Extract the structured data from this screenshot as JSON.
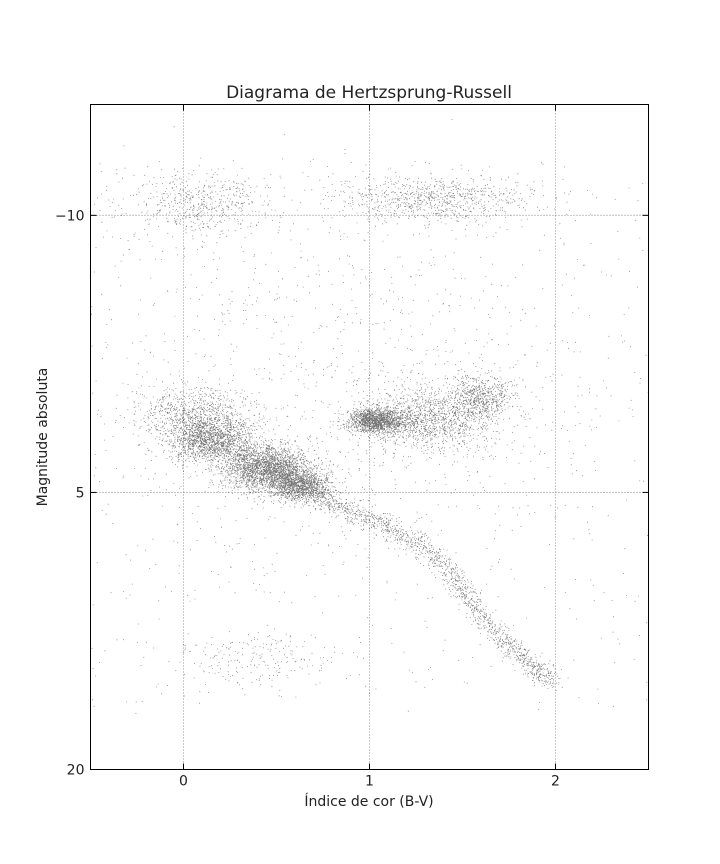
{
  "chart_data": {
    "type": "scatter",
    "title": "Diagrama de Hertzsprung-Russell",
    "xlabel": "Índice de cor (B-V)",
    "ylabel": "Magnitude absoluta",
    "xlim": [
      -0.5,
      2.5
    ],
    "ylim": [
      -16,
      20
    ],
    "y_inverted": true,
    "grid": true,
    "legend": "none",
    "point_color": "#000000",
    "x_ticks": [
      {
        "value": 0,
        "label": "0"
      },
      {
        "value": 1,
        "label": "1"
      },
      {
        "value": 2,
        "label": "2"
      }
    ],
    "y_ticks": [
      {
        "value": -10,
        "label": "−10"
      },
      {
        "value": 5,
        "label": "5"
      },
      {
        "value": 20,
        "label": "20"
      }
    ],
    "regions": [
      {
        "name": "supergiants-blue",
        "cx": 0.1,
        "cy": -10.6,
        "sx": 0.2,
        "sy": 0.9,
        "weight": 0.04
      },
      {
        "name": "supergiants-red",
        "cx": 1.35,
        "cy": -10.9,
        "sx": 0.25,
        "sy": 0.6,
        "weight": 0.06
      },
      {
        "name": "diffuse-halo",
        "cx": 0.8,
        "cy": -1.0,
        "sx": 0.8,
        "sy": 5.5,
        "weight": 0.07
      },
      {
        "name": "bright-giants",
        "cx": 0.05,
        "cy": 0.8,
        "sx": 0.15,
        "sy": 0.8,
        "weight": 0.06
      },
      {
        "name": "main-sequence-upper",
        "cx": 0.15,
        "cy": 2.2,
        "sx": 0.12,
        "sy": 0.6,
        "weight": 0.1
      },
      {
        "name": "main-sequence-turnoff",
        "cx": 0.45,
        "cy": 3.7,
        "sx": 0.12,
        "sy": 0.6,
        "weight": 0.16
      },
      {
        "name": "main-sequence-mid",
        "cx": 0.62,
        "cy": 4.6,
        "sx": 0.08,
        "sy": 0.4,
        "weight": 0.08
      },
      {
        "name": "red-clump",
        "cx": 1.03,
        "cy": 1.1,
        "sx": 0.08,
        "sy": 0.35,
        "weight": 0.11
      },
      {
        "name": "giant-branch",
        "cx": 1.35,
        "cy": 0.9,
        "sx": 0.18,
        "sy": 0.9,
        "weight": 0.1
      },
      {
        "name": "giant-branch-tip",
        "cx": 1.6,
        "cy": -0.2,
        "sx": 0.08,
        "sy": 0.6,
        "weight": 0.04
      },
      {
        "name": "white-dwarfs",
        "cx": 0.4,
        "cy": 14.0,
        "sx": 0.25,
        "sy": 0.7,
        "weight": 0.015
      }
    ],
    "lower_main_sequence": [
      {
        "x": 0.7,
        "y": 5.0
      },
      {
        "x": 0.9,
        "y": 6.0
      },
      {
        "x": 1.1,
        "y": 6.9
      },
      {
        "x": 1.3,
        "y": 8.0
      },
      {
        "x": 1.45,
        "y": 9.5
      },
      {
        "x": 1.55,
        "y": 11.0
      },
      {
        "x": 1.7,
        "y": 12.8
      },
      {
        "x": 1.85,
        "y": 14.2
      },
      {
        "x": 2.0,
        "y": 15.2
      }
    ]
  }
}
